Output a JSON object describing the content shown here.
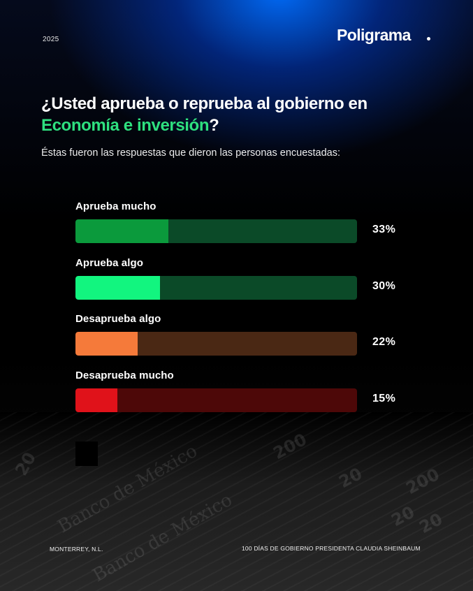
{
  "header": {
    "year": "2025",
    "brand": "Poligrama"
  },
  "question": {
    "part1": "¿Usted aprueba o reprueba al gobierno en",
    "highlight": "Economía e inversión",
    "part2": "?"
  },
  "subtitle": "Éstas fueron las respuestas que dieron las personas encuestadas:",
  "chart_data": {
    "type": "bar",
    "orientation": "horizontal",
    "xlim": [
      0,
      100
    ],
    "categories": [
      "Aprueba mucho",
      "Aprueba algo",
      "Desaprueba algo",
      "Desaprueba mucho"
    ],
    "values": [
      33,
      30,
      22,
      15
    ],
    "value_labels": [
      "33%",
      "30%",
      "22%",
      "15%"
    ],
    "fill_colors": [
      "#0b9a3c",
      "#12f57f",
      "#f57a3a",
      "#e0121a"
    ],
    "track_colors": [
      "#0b4a28",
      "#0b4a28",
      "#4a2814",
      "#4d0808"
    ]
  },
  "background_notes": {
    "bank_text": "Banco de México",
    "numbers": [
      "200",
      "200",
      "20",
      "20",
      "20",
      "20"
    ]
  },
  "footer": {
    "location": "MONTERREY, N.L.",
    "campaign": "100 DÍAS DE GOBIERNO PRESIDENTA CLAUDIA SHEINBAUM"
  },
  "colors": {
    "accent_green": "#2ee07f",
    "background": "#000000",
    "glow_blue": "#006eff"
  }
}
